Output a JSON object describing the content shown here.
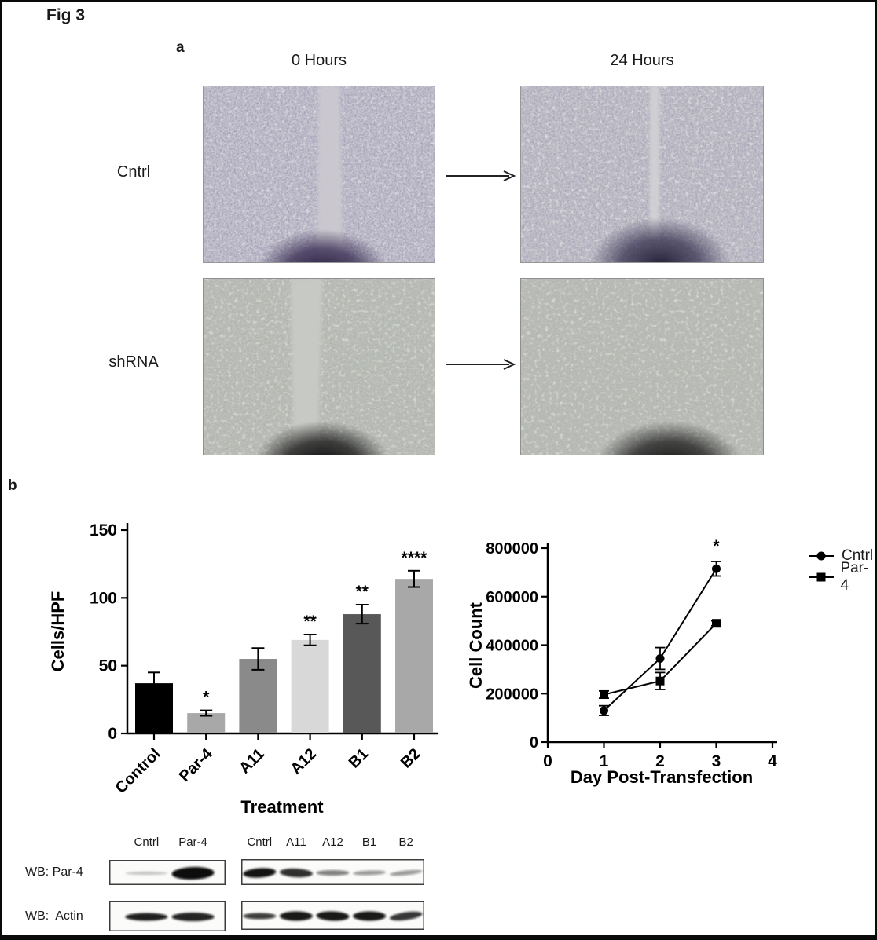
{
  "figure": {
    "label": "Fig 3",
    "panel_a": "a",
    "panel_b": "b"
  },
  "panel_a": {
    "column_headers": [
      "0 Hours",
      "24 Hours"
    ],
    "rows": [
      {
        "label": "Cntrl",
        "images": [
          {
            "name": "micrograph-cntrl-0h",
            "description": "confluent cell monolayer with open vertical scratch wound",
            "scratch": true
          },
          {
            "name": "micrograph-cntrl-24h",
            "description": "scratch wound nearly closed, faint vertical line remains",
            "scratch": true
          }
        ]
      },
      {
        "label": "shRNA",
        "images": [
          {
            "name": "micrograph-shrna-0h",
            "description": "confluent cell monolayer with open vertical scratch wound",
            "scratch": true
          },
          {
            "name": "micrograph-shrna-24h",
            "description": "scratch wound fully closed",
            "scratch": false
          }
        ]
      }
    ]
  },
  "chart_data": [
    {
      "type": "bar",
      "categories": [
        "Control",
        "Par-4",
        "A11",
        "A12",
        "B1",
        "B2"
      ],
      "values": [
        37,
        15,
        55,
        69,
        88,
        114
      ],
      "errors": [
        8,
        2,
        8,
        4,
        7,
        6
      ],
      "significance": [
        "",
        "*",
        "",
        "**",
        "**",
        "****"
      ],
      "bar_colors": [
        "#000000",
        "#a8a8a8",
        "#8a8a8a",
        "#d8d8d8",
        "#585858",
        "#a8a8a8"
      ],
      "title": "",
      "xlabel": "Treatment",
      "ylabel": "Cells/HPF",
      "ylim": [
        0,
        150
      ],
      "yticks": [
        0,
        50,
        100,
        150
      ],
      "grid": false
    },
    {
      "type": "line",
      "x": [
        1,
        2,
        3
      ],
      "series": [
        {
          "name": "Cntrl",
          "marker": "circle",
          "values": [
            130000,
            345000,
            715000
          ],
          "errors": [
            20000,
            45000,
            30000
          ]
        },
        {
          "name": "Par-4",
          "marker": "square",
          "values": [
            196000,
            252000,
            490000
          ],
          "errors": [
            15000,
            35000,
            10000
          ]
        }
      ],
      "significance": [
        {
          "series": "Cntrl",
          "x": 3,
          "label": "*"
        }
      ],
      "title": "",
      "xlabel": "Day Post-Transfection",
      "ylabel": "Cell Count",
      "xlim": [
        0,
        4
      ],
      "ylim": [
        0,
        800000
      ],
      "xticks": [
        0,
        1,
        2,
        3,
        4
      ],
      "yticks": [
        0,
        200000,
        400000,
        600000,
        800000
      ],
      "legend_position": "right",
      "grid": false
    }
  ],
  "western_blot": {
    "rows": [
      {
        "label": "WB: Par-4",
        "panels": [
          {
            "lanes": [
              "Cntrl",
              "Par-4"
            ],
            "band_centers": [
              0.32,
              0.72
            ],
            "intensities": [
              0.22,
              1.0
            ],
            "thickness": [
              2.2,
              8
            ],
            "tilts": [
              0,
              -2
            ]
          },
          {
            "lanes": [
              "Cntrl",
              "A11",
              "A12",
              "B1",
              "B2"
            ],
            "band_centers": [
              0.1,
              0.3,
              0.5,
              0.7,
              0.9
            ],
            "intensities": [
              0.97,
              0.85,
              0.5,
              0.4,
              0.4
            ],
            "thickness": [
              6,
              5.5,
              3.5,
              3,
              3
            ],
            "tilts": [
              -4,
              3,
              0,
              -2,
              -6
            ]
          }
        ]
      },
      {
        "label": "WB:  Actin",
        "panels": [
          {
            "lanes": [
              "",
              ""
            ],
            "band_centers": [
              0.32,
              0.72
            ],
            "intensities": [
              0.92,
              0.9
            ],
            "thickness": [
              5,
              5.5
            ],
            "tilts": [
              0,
              0
            ]
          },
          {
            "lanes": [
              "",
              "",
              "",
              "",
              ""
            ],
            "band_centers": [
              0.1,
              0.3,
              0.5,
              0.7,
              0.9
            ],
            "intensities": [
              0.8,
              0.95,
              0.95,
              0.95,
              0.82
            ],
            "thickness": [
              4,
              6,
              6,
              6,
              5
            ],
            "tilts": [
              0,
              0,
              2,
              0,
              -8
            ]
          }
        ]
      }
    ]
  }
}
